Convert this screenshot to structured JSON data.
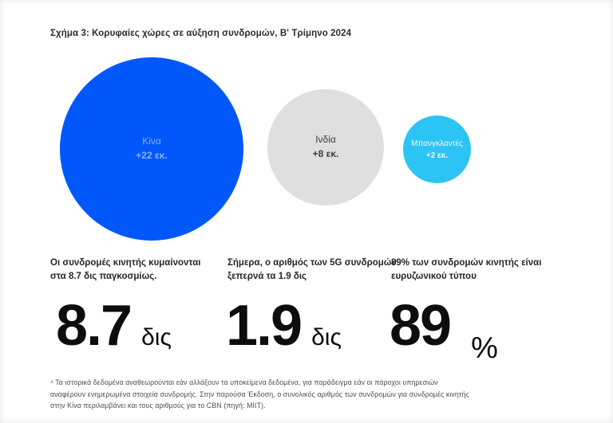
{
  "figure": {
    "title": "Σχήμα 3: Κορυφαίες χώρες σε αύξηση συνδρομών, Β' Τρίμηνο 2024"
  },
  "chart_data": {
    "type": "bubble",
    "title": "Σχήμα 3: Κορυφαίες χώρες σε αύξηση συνδρομών, Β' Τρίμηνο 2024",
    "legend_position": "none",
    "grid": false,
    "series": [
      {
        "label": "Κίνα",
        "value_label": "+22 εκ.",
        "value_millions": 22,
        "color": "#0058fa",
        "text_color": "#8ab1fb"
      },
      {
        "label": "Ινδία",
        "value_label": "+8 εκ.",
        "value_millions": 8,
        "color": "#dfdfdf",
        "text_color": "#3d3d3d"
      },
      {
        "label": "Μπανγκλαντές",
        "value_label": "+2 εκ.",
        "value_millions": 2,
        "color": "#2cc4f4",
        "text_color": "#f2fbff"
      }
    ]
  },
  "stats": [
    {
      "lines": [
        "Οι συνδρομές κινητής κυμαίνονται",
        "στα 8.7 δις παγκοσμίως."
      ],
      "value": "8.7",
      "unit": "δις"
    },
    {
      "lines": [
        "Σήμερα, ο αριθμός των 5G συνδρομών",
        "ξεπερνά τα 1.9 δις"
      ],
      "value": "1.9",
      "unit": "δις"
    },
    {
      "lines": [
        "89% των συνδρομών κινητής είναι",
        "ευρυζωνικού τύπου"
      ],
      "value": "89",
      "unit": "%"
    }
  ],
  "footnote": {
    "lines": [
      "⁴ Τα ιστορικά δεδομένα αναθεωρούνται εάν αλλάξουν τα υποκείμενα δεδομένα, για παράδειγμα εάν οι πάροχοι υπηρεσιών",
      "αναφέρουν ενημερωμένα στοιχεία συνδρομής. Στην παρούσα Έκδοση, ο συνολικός αριθμός των συνδρομών για συνδρομές κινητής",
      "στην Κίνα περιλαμβάνει και τους αριθμούς για το CBN (πηγή: MIIT)."
    ]
  }
}
